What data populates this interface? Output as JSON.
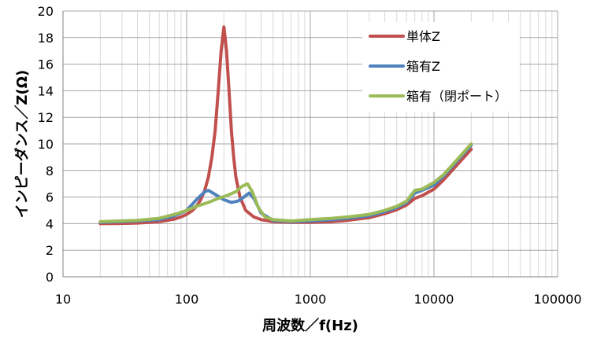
{
  "chart_data": {
    "type": "line",
    "title": "",
    "xlabel": "周波数／f(Hz)",
    "ylabel": "インピーダンス／Z(Ω)",
    "xscale": "log",
    "xlim": [
      10,
      100000
    ],
    "ylim": [
      0,
      20
    ],
    "x_ticks": [
      10,
      100,
      1000,
      10000,
      100000
    ],
    "x_tick_labels": [
      "10",
      "100",
      "1000",
      "10000",
      "100000"
    ],
    "y_ticks": [
      0,
      2,
      4,
      6,
      8,
      10,
      12,
      14,
      16,
      18,
      20
    ],
    "y_tick_labels": [
      "0",
      "2",
      "4",
      "6",
      "8",
      "10",
      "12",
      "14",
      "16",
      "18",
      "20"
    ],
    "grid": true,
    "legend_position": "top-right",
    "series": [
      {
        "name": "単体Z",
        "color": "#C0504D",
        "points": [
          [
            20,
            4.0
          ],
          [
            30,
            4.02
          ],
          [
            40,
            4.05
          ],
          [
            50,
            4.1
          ],
          [
            60,
            4.15
          ],
          [
            70,
            4.25
          ],
          [
            80,
            4.35
          ],
          [
            90,
            4.5
          ],
          [
            100,
            4.7
          ],
          [
            110,
            4.95
          ],
          [
            120,
            5.3
          ],
          [
            130,
            5.8
          ],
          [
            140,
            6.5
          ],
          [
            150,
            7.5
          ],
          [
            160,
            9.0
          ],
          [
            170,
            11.0
          ],
          [
            180,
            14.0
          ],
          [
            190,
            17.0
          ],
          [
            200,
            18.8
          ],
          [
            210,
            17.0
          ],
          [
            220,
            14.0
          ],
          [
            230,
            11.0
          ],
          [
            240,
            9.0
          ],
          [
            250,
            7.5
          ],
          [
            270,
            6.0
          ],
          [
            300,
            5.0
          ],
          [
            350,
            4.5
          ],
          [
            400,
            4.3
          ],
          [
            500,
            4.15
          ],
          [
            700,
            4.1
          ],
          [
            1000,
            4.1
          ],
          [
            1500,
            4.15
          ],
          [
            2000,
            4.25
          ],
          [
            3000,
            4.45
          ],
          [
            4000,
            4.75
          ],
          [
            5000,
            5.05
          ],
          [
            6000,
            5.4
          ],
          [
            7000,
            5.9
          ],
          [
            8000,
            6.1
          ],
          [
            10000,
            6.6
          ],
          [
            12000,
            7.3
          ],
          [
            15000,
            8.3
          ],
          [
            20000,
            9.6
          ]
        ]
      },
      {
        "name": "箱有Z",
        "color": "#4F81BD",
        "points": [
          [
            20,
            4.1
          ],
          [
            40,
            4.2
          ],
          [
            60,
            4.3
          ],
          [
            80,
            4.6
          ],
          [
            100,
            5.0
          ],
          [
            120,
            5.8
          ],
          [
            140,
            6.4
          ],
          [
            150,
            6.5
          ],
          [
            170,
            6.2
          ],
          [
            200,
            5.8
          ],
          [
            230,
            5.6
          ],
          [
            260,
            5.7
          ],
          [
            290,
            6.0
          ],
          [
            320,
            6.3
          ],
          [
            350,
            5.9
          ],
          [
            400,
            4.8
          ],
          [
            500,
            4.25
          ],
          [
            700,
            4.15
          ],
          [
            1000,
            4.2
          ],
          [
            1500,
            4.3
          ],
          [
            2000,
            4.4
          ],
          [
            3000,
            4.6
          ],
          [
            4000,
            4.9
          ],
          [
            5000,
            5.2
          ],
          [
            6000,
            5.6
          ],
          [
            7000,
            6.3
          ],
          [
            8000,
            6.5
          ],
          [
            10000,
            6.9
          ],
          [
            12000,
            7.6
          ],
          [
            15000,
            8.6
          ],
          [
            20000,
            9.9
          ]
        ]
      },
      {
        "name": "箱有（閉ポート）",
        "color": "#9BBB59",
        "points": [
          [
            20,
            4.15
          ],
          [
            40,
            4.25
          ],
          [
            60,
            4.4
          ],
          [
            80,
            4.7
          ],
          [
            100,
            5.0
          ],
          [
            120,
            5.3
          ],
          [
            150,
            5.6
          ],
          [
            180,
            5.9
          ],
          [
            210,
            6.1
          ],
          [
            250,
            6.4
          ],
          [
            280,
            6.8
          ],
          [
            310,
            7.0
          ],
          [
            340,
            6.4
          ],
          [
            380,
            5.2
          ],
          [
            430,
            4.5
          ],
          [
            500,
            4.3
          ],
          [
            700,
            4.2
          ],
          [
            1000,
            4.3
          ],
          [
            1500,
            4.4
          ],
          [
            2000,
            4.5
          ],
          [
            3000,
            4.7
          ],
          [
            4000,
            5.0
          ],
          [
            5000,
            5.3
          ],
          [
            6000,
            5.7
          ],
          [
            7000,
            6.5
          ],
          [
            8000,
            6.6
          ],
          [
            10000,
            7.1
          ],
          [
            12000,
            7.7
          ],
          [
            15000,
            8.7
          ],
          [
            20000,
            10.0
          ]
        ]
      }
    ]
  }
}
